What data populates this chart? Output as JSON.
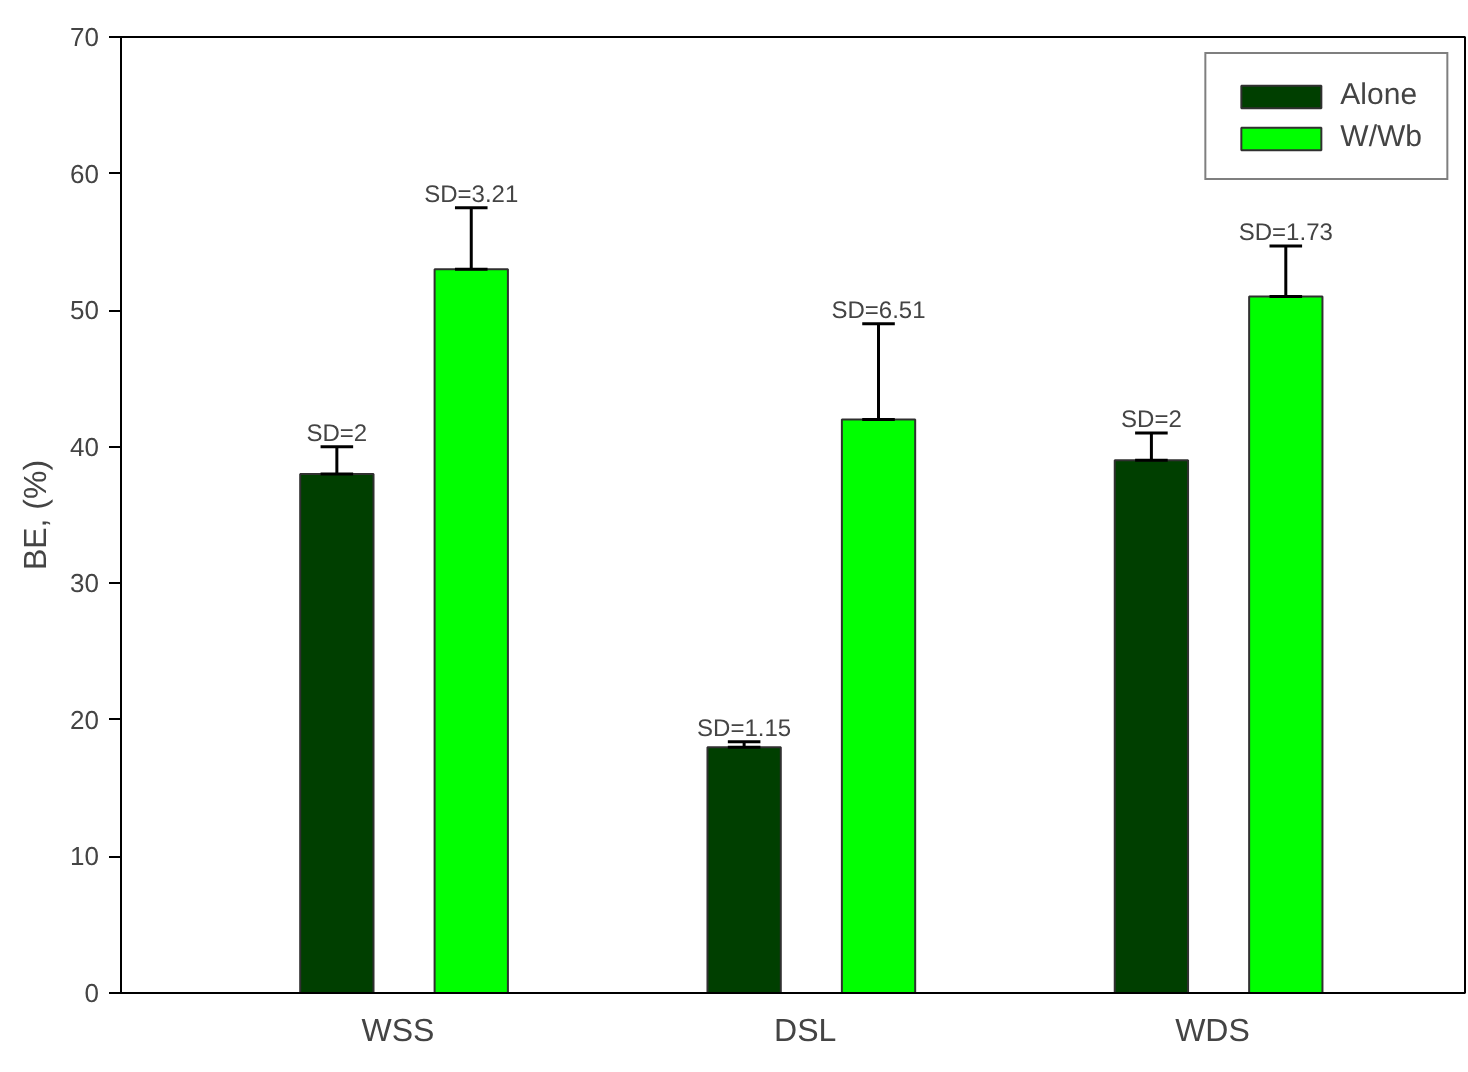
{
  "chart_data": {
    "type": "bar",
    "ylabel": "BE, (%)",
    "categories": [
      "WSS",
      "DSL",
      "WDS"
    ],
    "series": [
      {
        "name": "Alone",
        "color": "#003f00",
        "values": [
          38,
          18,
          39
        ],
        "errors": [
          [
            38,
            40
          ],
          [
            18,
            18.4
          ],
          [
            39,
            41
          ]
        ]
      },
      {
        "name": "W/Wb",
        "color": "#00ff00",
        "values": [
          53,
          42,
          51
        ],
        "errors": [
          [
            53,
            57.5
          ],
          [
            42,
            49
          ],
          [
            51,
            54.7
          ]
        ]
      }
    ],
    "ylim": [
      0,
      70
    ],
    "yticks": [
      0,
      10,
      20,
      30,
      40,
      50,
      60,
      70
    ],
    "grid": false,
    "legend": "top right",
    "annotations": [
      "SD=2",
      "SD=3.21",
      "SD=1.15",
      "SD=6.51",
      "SD=2",
      "SD=1.73"
    ]
  }
}
